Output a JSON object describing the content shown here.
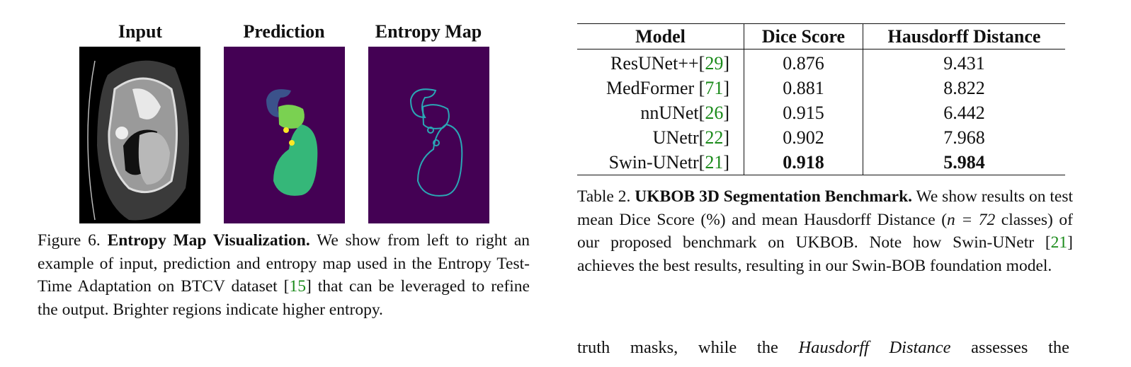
{
  "figure": {
    "panel_titles": [
      "Input",
      "Prediction",
      "Entropy Map"
    ],
    "caption": {
      "label": "Figure 6.",
      "title": "Entropy Map Visualization.",
      "text_before_ref": "We show from left to right an example of input, prediction and entropy map used in the Entropy Test-Time Adaptation on BTCV dataset [",
      "ref": "15",
      "text_after_ref": "] that can be leveraged to refine the output. Brighter regions indicate higher entropy."
    }
  },
  "table": {
    "headers": [
      "Model",
      "Dice Score",
      "Hausdorff Distance"
    ],
    "rows": [
      {
        "model": "ResUNet++",
        "ref": "29",
        "sep": "",
        "dice": "0.876",
        "hd": "9.431",
        "bold": false
      },
      {
        "model": "MedFormer",
        "ref": "71",
        "sep": " ",
        "dice": "0.881",
        "hd": "8.822",
        "bold": false
      },
      {
        "model": "nnUNet",
        "ref": "26",
        "sep": "",
        "dice": "0.915",
        "hd": "6.442",
        "bold": false
      },
      {
        "model": "UNetr",
        "ref": "22",
        "sep": "",
        "dice": "0.902",
        "hd": "7.968",
        "bold": false
      },
      {
        "model": "Swin-UNetr",
        "ref": "21",
        "sep": "",
        "dice": "0.918",
        "hd": "5.984",
        "bold": true
      }
    ],
    "caption": {
      "label": "Table 2.",
      "title": "UKBOB 3D Segmentation Benchmark.",
      "text1": "We show results on test mean Dice Score (%) and mean Hausdorff Distance (",
      "math": "n = 72",
      "text2": " classes) of our proposed benchmark on UKBOB. Note how Swin-UNetr [",
      "ref": "21",
      "text3": "] achieves the best results, resulting in our Swin-BOB foundation model."
    }
  },
  "body_text": {
    "before": "truth masks, while the ",
    "italic": "Hausdorff Distance",
    "after": " assesses the"
  },
  "colors": {
    "ref_link": "#1a8a1a",
    "viridis_bg": "#440154"
  }
}
